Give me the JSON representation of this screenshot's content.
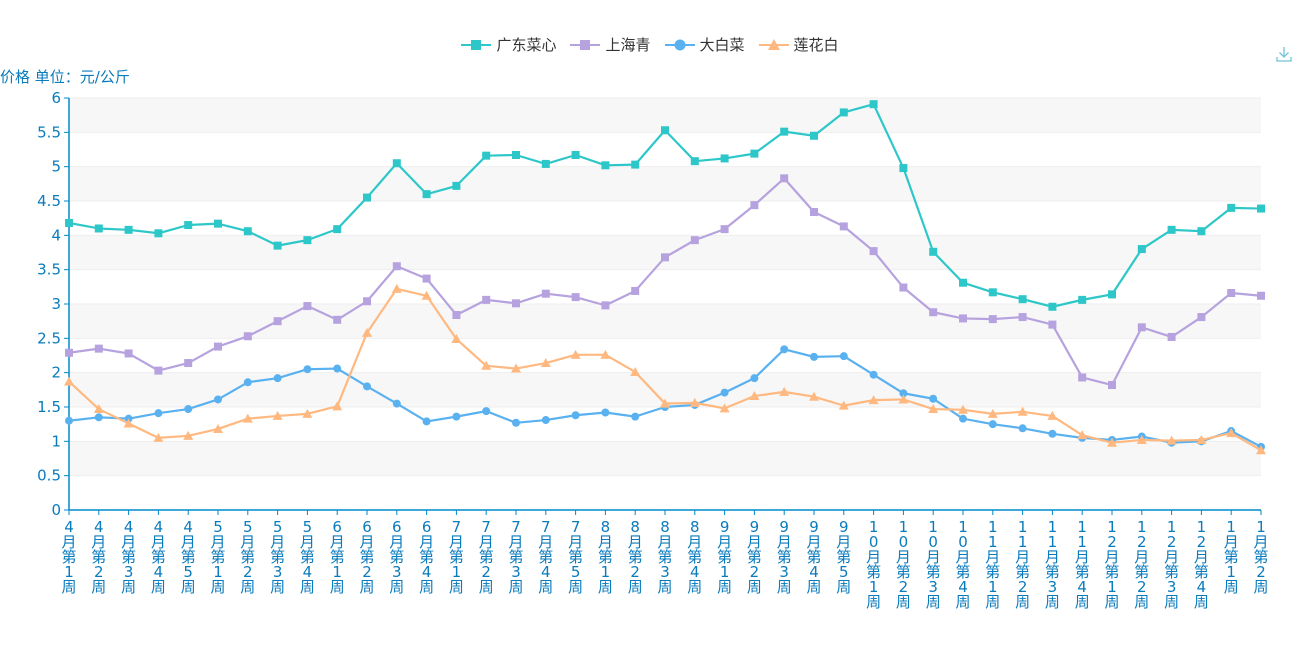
{
  "toolbar": {
    "download_icon": "download-icon"
  },
  "chart_data": {
    "type": "line",
    "ylabel": "价格 单位：元/公斤",
    "ylim": [
      0,
      6
    ],
    "yticks": [
      "0",
      "0.5",
      "1",
      "1.5",
      "2",
      "2.5",
      "3",
      "3.5",
      "4",
      "4.5",
      "5",
      "5.5",
      "6"
    ],
    "ytick_values": [
      0,
      0.5,
      1,
      1.5,
      2,
      2.5,
      3,
      3.5,
      4,
      4.5,
      5,
      5.5,
      6
    ],
    "grid": true,
    "legend_position": "top-center",
    "categories": [
      "4月第1周",
      "4月第2周",
      "4月第3周",
      "4月第4周",
      "4月第5周",
      "5月第1周",
      "5月第2周",
      "5月第3周",
      "5月第4周",
      "6月第1周",
      "6月第2周",
      "6月第3周",
      "6月第4周",
      "7月第1周",
      "7月第2周",
      "7月第3周",
      "7月第4周",
      "7月第5周",
      "8月第1周",
      "8月第2周",
      "8月第3周",
      "8月第4周",
      "9月第1周",
      "9月第2周",
      "9月第3周",
      "9月第4周",
      "9月第5周",
      "10月第1周",
      "10月第2周",
      "10月第3周",
      "10月第4周",
      "11月第1周",
      "11月第2周",
      "11月第3周",
      "11月第4周",
      "12月第1周",
      "12月第2周",
      "12月第3周",
      "12月第4周",
      "1月第1周",
      "1月第2周"
    ],
    "series": [
      {
        "name": "广东菜心",
        "color": "#2ec7c9",
        "marker": "square",
        "values": [
          4.18,
          4.1,
          4.08,
          4.03,
          4.15,
          4.17,
          4.06,
          3.85,
          3.93,
          4.09,
          4.55,
          5.05,
          4.6,
          4.72,
          5.16,
          5.17,
          5.04,
          5.17,
          5.02,
          5.03,
          5.53,
          5.08,
          5.12,
          5.19,
          5.51,
          5.45,
          5.79,
          5.91,
          4.98,
          3.76,
          3.31,
          3.17,
          3.07,
          2.96,
          3.06,
          3.14,
          3.8,
          4.08,
          4.06,
          4.4,
          4.39
        ]
      },
      {
        "name": "上海青",
        "color": "#b6a2de",
        "marker": "square",
        "values": [
          2.29,
          2.35,
          2.28,
          2.03,
          2.14,
          2.38,
          2.53,
          2.75,
          2.97,
          2.77,
          3.04,
          3.55,
          3.37,
          2.84,
          3.06,
          3.01,
          3.15,
          3.1,
          2.98,
          3.19,
          3.68,
          3.93,
          4.09,
          4.44,
          4.83,
          4.34,
          4.13,
          3.77,
          3.24,
          2.88,
          2.79,
          2.78,
          2.81,
          2.7,
          1.93,
          1.82,
          2.66,
          2.52,
          2.81,
          3.16,
          3.12
        ]
      },
      {
        "name": "大白菜",
        "color": "#5ab1ef",
        "marker": "circle",
        "values": [
          1.3,
          1.35,
          1.33,
          1.41,
          1.47,
          1.61,
          1.86,
          1.92,
          2.05,
          2.06,
          1.8,
          1.55,
          1.29,
          1.36,
          1.44,
          1.27,
          1.31,
          1.38,
          1.42,
          1.36,
          1.5,
          1.53,
          1.71,
          1.92,
          2.34,
          2.23,
          2.24,
          1.97,
          1.7,
          1.62,
          1.33,
          1.25,
          1.19,
          1.11,
          1.05,
          1.02,
          1.07,
          0.98,
          1.0,
          1.15,
          0.92
        ]
      },
      {
        "name": "莲花白",
        "color": "#ffb980",
        "marker": "triangle",
        "values": [
          1.87,
          1.47,
          1.26,
          1.05,
          1.08,
          1.18,
          1.33,
          1.37,
          1.4,
          1.51,
          2.58,
          3.22,
          3.12,
          2.49,
          2.1,
          2.06,
          2.14,
          2.26,
          2.26,
          2.01,
          1.55,
          1.56,
          1.48,
          1.66,
          1.72,
          1.65,
          1.52,
          1.6,
          1.61,
          1.47,
          1.46,
          1.4,
          1.43,
          1.37,
          1.09,
          0.98,
          1.02,
          1.01,
          1.02,
          1.12,
          0.87
        ]
      }
    ]
  }
}
